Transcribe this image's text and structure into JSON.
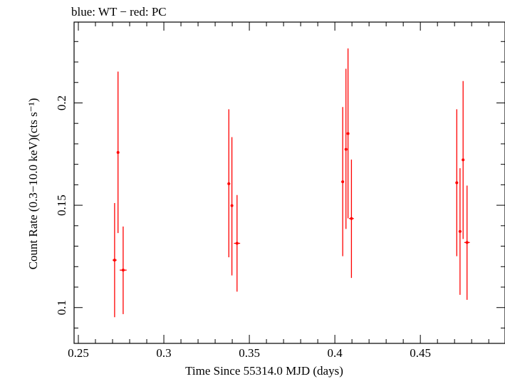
{
  "chart_data": {
    "type": "scatter",
    "title": "blue: WT − red: PC",
    "xlabel": "Time Since 55314.0 MJD (days)",
    "ylabel": "Count Rate (0.3−10.0 keV)(cts s⁻¹)",
    "xlim": [
      0.2475,
      0.4995
    ],
    "ylim": [
      0.0825,
      0.2395
    ],
    "x_ticks": [
      0.25,
      0.3,
      0.35,
      0.4,
      0.45
    ],
    "x_tick_labels": [
      "0.25",
      "0.3",
      "0.35",
      "0.4",
      "0.45"
    ],
    "y_ticks": [
      0.1,
      0.15,
      0.2
    ],
    "y_tick_labels": [
      "0.1",
      "0.15",
      "0.2"
    ],
    "grid": false,
    "series": [
      {
        "color": "#ff0000",
        "points": [
          {
            "x": 0.2712,
            "y": 0.1232,
            "yerr_low": 0.0953,
            "yerr_high": 0.1511,
            "xerr": 0.0012
          },
          {
            "x": 0.2732,
            "y": 0.1758,
            "yerr_low": 0.1364,
            "yerr_high": 0.2153,
            "xerr": 0.0006
          },
          {
            "x": 0.2762,
            "y": 0.1183,
            "yerr_low": 0.0968,
            "yerr_high": 0.1396,
            "xerr": 0.002
          },
          {
            "x": 0.338,
            "y": 0.1605,
            "yerr_low": 0.1246,
            "yerr_high": 0.1969,
            "xerr": 0.0008
          },
          {
            "x": 0.3398,
            "y": 0.1498,
            "yerr_low": 0.1157,
            "yerr_high": 0.1833,
            "xerr": 0.0006
          },
          {
            "x": 0.3428,
            "y": 0.1314,
            "yerr_low": 0.1078,
            "yerr_high": 0.155,
            "xerr": 0.0018
          },
          {
            "x": 0.4046,
            "y": 0.1615,
            "yerr_low": 0.1251,
            "yerr_high": 0.198,
            "xerr": 0.0008
          },
          {
            "x": 0.4065,
            "y": 0.1773,
            "yerr_low": 0.1384,
            "yerr_high": 0.2167,
            "xerr": 0.0006
          },
          {
            "x": 0.4077,
            "y": 0.185,
            "yerr_low": 0.1436,
            "yerr_high": 0.2266,
            "xerr": 0.0006
          },
          {
            "x": 0.4097,
            "y": 0.1435,
            "yerr_low": 0.1145,
            "yerr_high": 0.1723,
            "xerr": 0.0014
          },
          {
            "x": 0.4713,
            "y": 0.161,
            "yerr_low": 0.1251,
            "yerr_high": 0.1969,
            "xerr": 0.0008
          },
          {
            "x": 0.4732,
            "y": 0.1372,
            "yerr_low": 0.1062,
            "yerr_high": 0.1681,
            "xerr": 0.0008
          },
          {
            "x": 0.475,
            "y": 0.1722,
            "yerr_low": 0.1335,
            "yerr_high": 0.2107,
            "xerr": 0.0006
          },
          {
            "x": 0.4773,
            "y": 0.1318,
            "yerr_low": 0.1038,
            "yerr_high": 0.1596,
            "xerr": 0.0016
          }
        ]
      }
    ]
  }
}
